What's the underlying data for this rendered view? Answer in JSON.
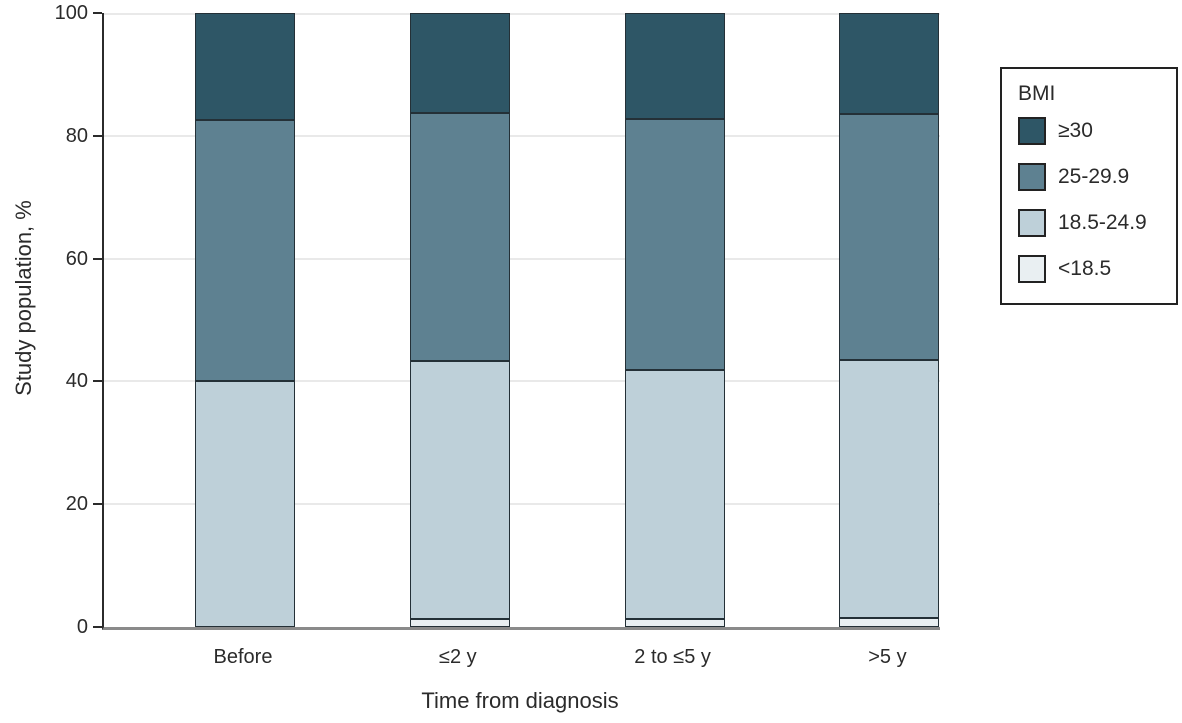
{
  "chart_data": {
    "type": "bar",
    "stacked": true,
    "title": "",
    "xlabel": "Time from diagnosis",
    "ylabel": "Study population, %",
    "ylim": [
      0,
      100
    ],
    "yticks": [
      0,
      20,
      40,
      60,
      80,
      100
    ],
    "grid": true,
    "legend_position": "right-top",
    "legend_title": "BMI",
    "categories": [
      "Before",
      "≤2 y",
      "2 to ≤5 y",
      ">5 y"
    ],
    "series": [
      {
        "name": "≥30",
        "color": "#2e5666",
        "values": [
          17.5,
          16.3,
          17.2,
          16.4
        ]
      },
      {
        "name": "25-29.9",
        "color": "#5e8191",
        "values": [
          42.5,
          40.4,
          41.0,
          40.1
        ]
      },
      {
        "name": "18.5-24.9",
        "color": "#bed0d9",
        "values": [
          40.0,
          42.0,
          40.5,
          42.0
        ]
      },
      {
        "name": "<18.5",
        "color": "#e9eff2",
        "values": [
          0.0,
          1.3,
          1.3,
          1.5
        ]
      }
    ],
    "colors": {
      "axis_y": "#2b2b2b",
      "axis_x": "#8a8a8a",
      "gridline": "#e9e9e9",
      "segment_border": "#243037",
      "text": "#2b2b2b"
    }
  }
}
